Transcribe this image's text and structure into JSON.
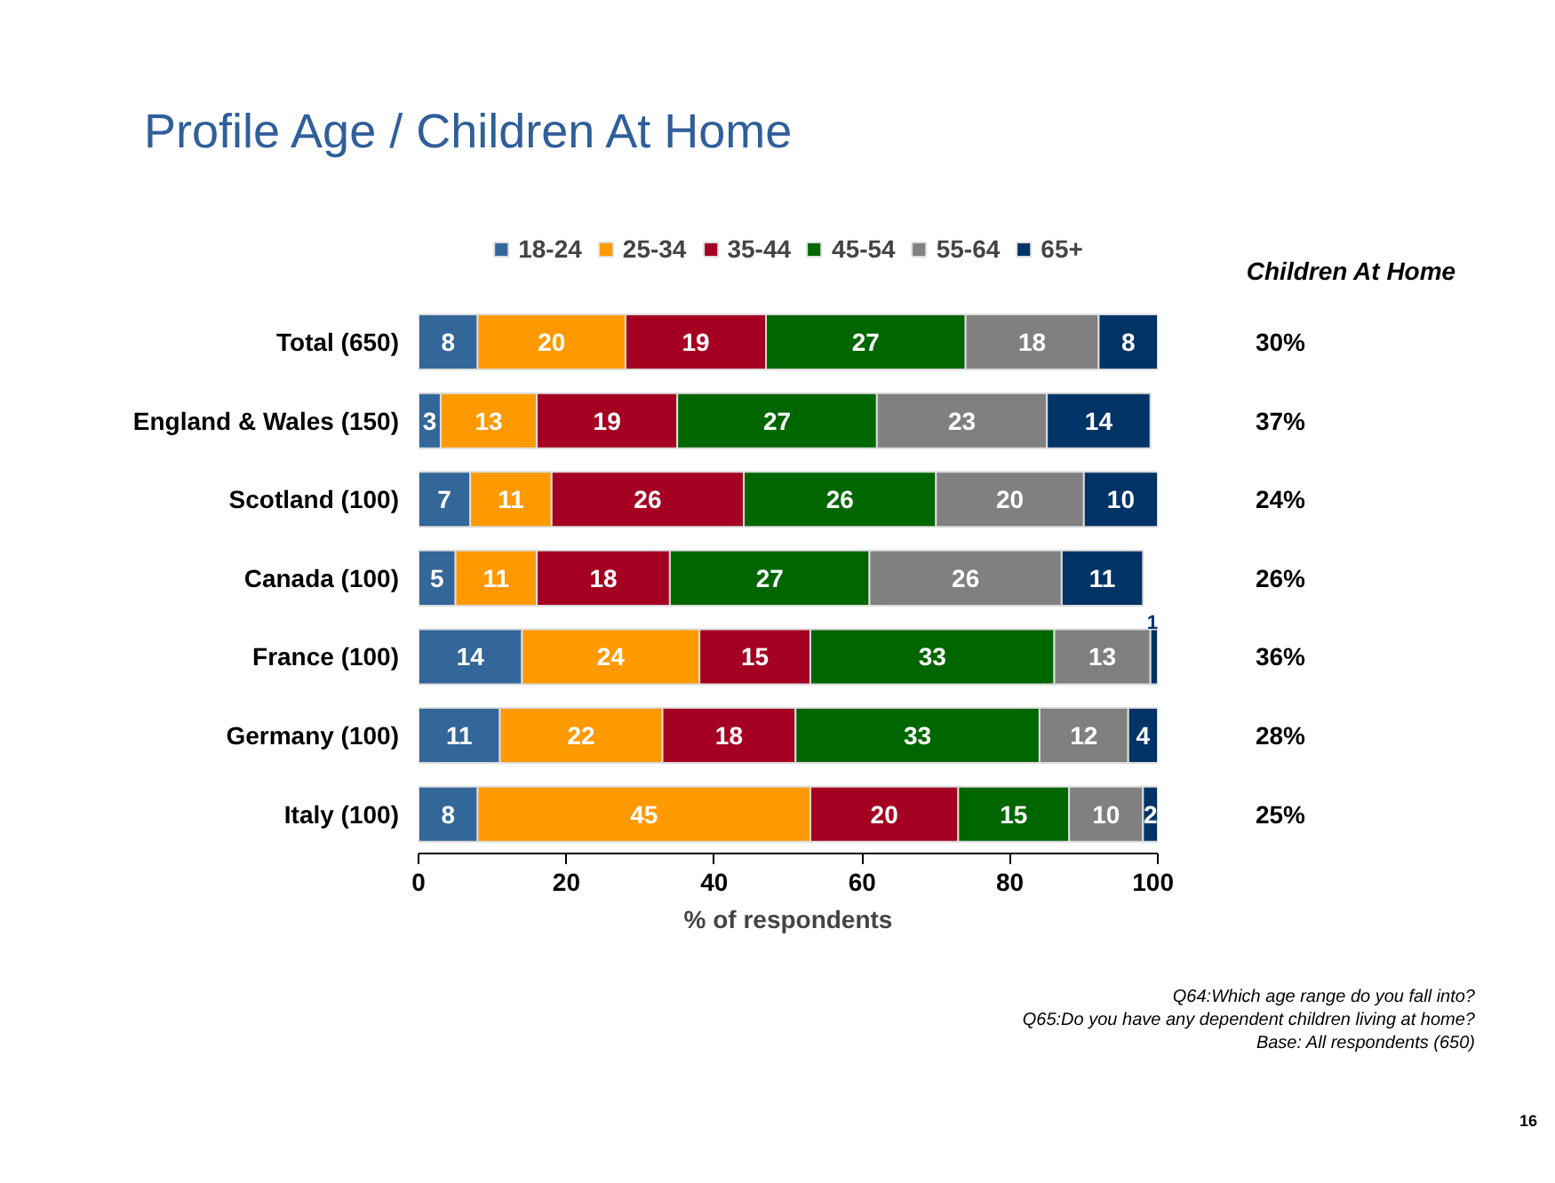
{
  "chart_data": {
    "type": "bar",
    "orientation": "horizontal",
    "stacked": true,
    "title": "Profile Age / Children At Home",
    "xlabel": "% of respondents",
    "categories": [
      "Total (650)",
      "England & Wales (150)",
      "Scotland (100)",
      "Canada (100)",
      "France (100)",
      "Germany (100)",
      "Italy (100)"
    ],
    "series": [
      {
        "name": "18-24",
        "color": "#336699",
        "values": [
          8,
          3,
          7,
          5,
          14,
          11,
          8
        ]
      },
      {
        "name": "25-34",
        "color": "#ff9900",
        "values": [
          20,
          13,
          11,
          11,
          24,
          22,
          45
        ]
      },
      {
        "name": "35-44",
        "color": "#a50021",
        "values": [
          19,
          19,
          26,
          18,
          15,
          18,
          20
        ]
      },
      {
        "name": "45-54",
        "color": "#006600",
        "values": [
          27,
          27,
          26,
          27,
          33,
          33,
          15
        ]
      },
      {
        "name": "55-64",
        "color": "#808080",
        "values": [
          18,
          23,
          20,
          26,
          13,
          12,
          10
        ]
      },
      {
        "name": "65+",
        "color": "#003366",
        "values": [
          8,
          14,
          10,
          11,
          1,
          4,
          2
        ]
      }
    ],
    "xlim": [
      0,
      100
    ],
    "xticks": [
      0,
      20,
      40,
      60,
      80,
      100
    ],
    "data_labels": true,
    "legend": "top",
    "grid": false,
    "annotations": [
      "Children At Home",
      "30%",
      "37%",
      "24%",
      "26%",
      "36%",
      "28%",
      "25%",
      "Q64:Which age range do you fall into?",
      "Q65:Do you have any dependent children living at home?",
      "Base: All respondents (650)",
      "16"
    ]
  }
}
